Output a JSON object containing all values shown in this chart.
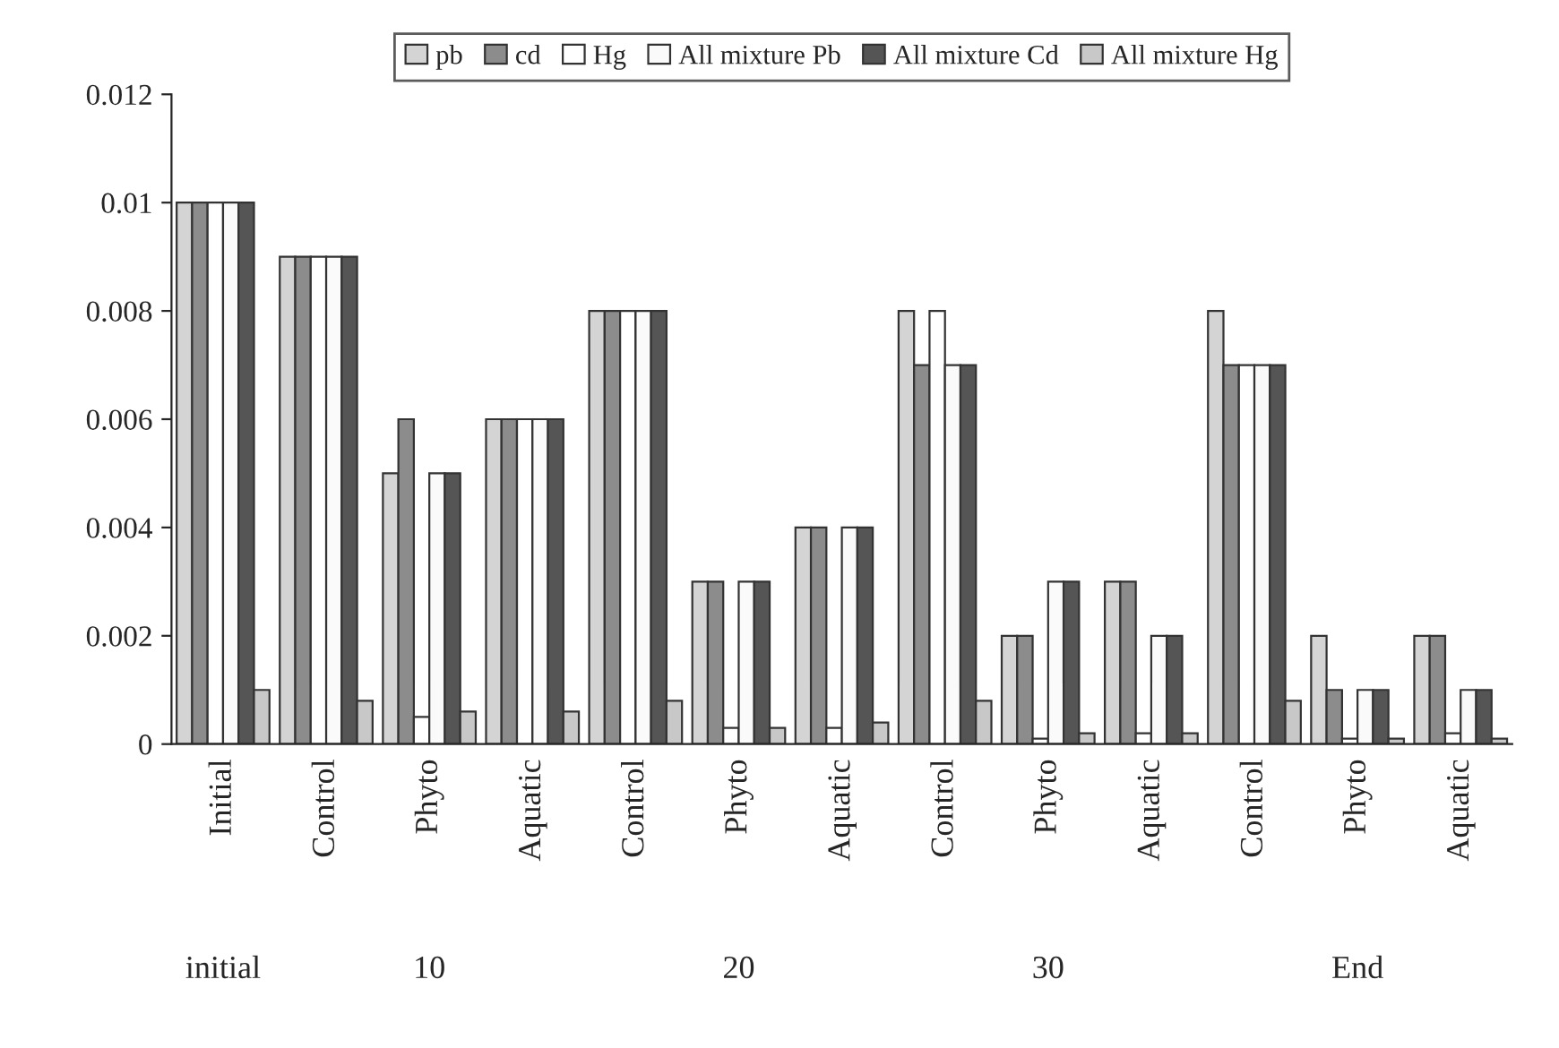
{
  "chart_data": {
    "type": "bar",
    "categories": [
      "Initial",
      "Control",
      "Phyto",
      "Aquatic",
      "Control",
      "Phyto",
      "Aquatic",
      "Control",
      "Phyto",
      "Aquatic",
      "Control",
      "Phyto",
      "Aquatic"
    ],
    "series": [
      {
        "name": "pb",
        "color": "#d4d4d4",
        "values": [
          0.01,
          0.009,
          0.005,
          0.006,
          0.008,
          0.003,
          0.004,
          0.008,
          0.002,
          0.003,
          0.008,
          0.002,
          0.002
        ]
      },
      {
        "name": "cd",
        "color": "#8c8c8c",
        "values": [
          0.01,
          0.009,
          0.006,
          0.006,
          0.008,
          0.003,
          0.004,
          0.007,
          0.002,
          0.003,
          0.007,
          0.001,
          0.002
        ]
      },
      {
        "name": "Hg",
        "color": "#ffffff",
        "values": [
          0.01,
          0.009,
          0.0005,
          0.006,
          0.008,
          0.0003,
          0.0003,
          0.008,
          0.0001,
          0.0002,
          0.007,
          0.0001,
          0.0002
        ]
      },
      {
        "name": "All mixture Pb",
        "color": "#fafafa",
        "values": [
          0.01,
          0.009,
          0.005,
          0.006,
          0.008,
          0.003,
          0.004,
          0.007,
          0.003,
          0.002,
          0.007,
          0.001,
          0.001
        ]
      },
      {
        "name": "All mixture Cd",
        "color": "#555555",
        "values": [
          0.01,
          0.009,
          0.005,
          0.006,
          0.008,
          0.003,
          0.004,
          0.007,
          0.003,
          0.002,
          0.007,
          0.001,
          0.001
        ]
      },
      {
        "name": "All mixture Hg",
        "color": "#c8c8c8",
        "values": [
          0.001,
          0.0008,
          0.0006,
          0.0006,
          0.0008,
          0.0003,
          0.0004,
          0.0008,
          0.0002,
          0.0002,
          0.0008,
          0.0001,
          0.0001
        ]
      }
    ],
    "ylim": [
      0,
      0.012
    ],
    "yticks": [
      0,
      0.002,
      0.004,
      0.006,
      0.008,
      0.01,
      0.012
    ],
    "grid": false,
    "legend": "top",
    "annotations": [
      "initial",
      "10",
      "20",
      "30",
      "End"
    ]
  }
}
